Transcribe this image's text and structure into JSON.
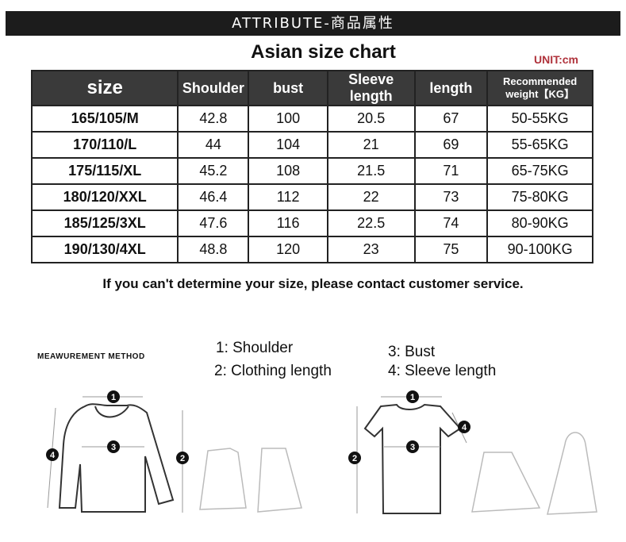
{
  "banner": "ATTRIBUTE-商品属性",
  "title": "Asian size chart",
  "unit": "UNIT:cm",
  "table": {
    "headers": [
      "size",
      "Shoulder",
      "bust",
      "Sleeve length",
      "length",
      "Recommended weight【KG】"
    ],
    "rows": [
      [
        "165/105/M",
        "42.8",
        "100",
        "20.5",
        "67",
        "50-55KG"
      ],
      [
        "170/110/L",
        "44",
        "104",
        "21",
        "69",
        "55-65KG"
      ],
      [
        "175/115/XL",
        "45.2",
        "108",
        "21.5",
        "71",
        "65-75KG"
      ],
      [
        "180/120/XXL",
        "46.4",
        "112",
        "22",
        "73",
        "75-80KG"
      ],
      [
        "185/125/3XL",
        "47.6",
        "116",
        "22.5",
        "74",
        "80-90KG"
      ],
      [
        "190/130/4XL",
        "48.8",
        "120",
        "23",
        "75",
        "90-100KG"
      ]
    ]
  },
  "note": "If you can't determine your size, please contact customer service.",
  "measurement": {
    "title": "MEAWUREMENT METHOD",
    "legend": [
      "1:  Shoulder",
      "2:  Clothing length",
      "3:  Bust",
      "4:  Sleeve length"
    ],
    "markers": [
      "1",
      "2",
      "3",
      "4"
    ]
  },
  "colors": {
    "banner": "#1c1c1c",
    "header": "#3a3a3a",
    "unit": "#b0333c"
  }
}
